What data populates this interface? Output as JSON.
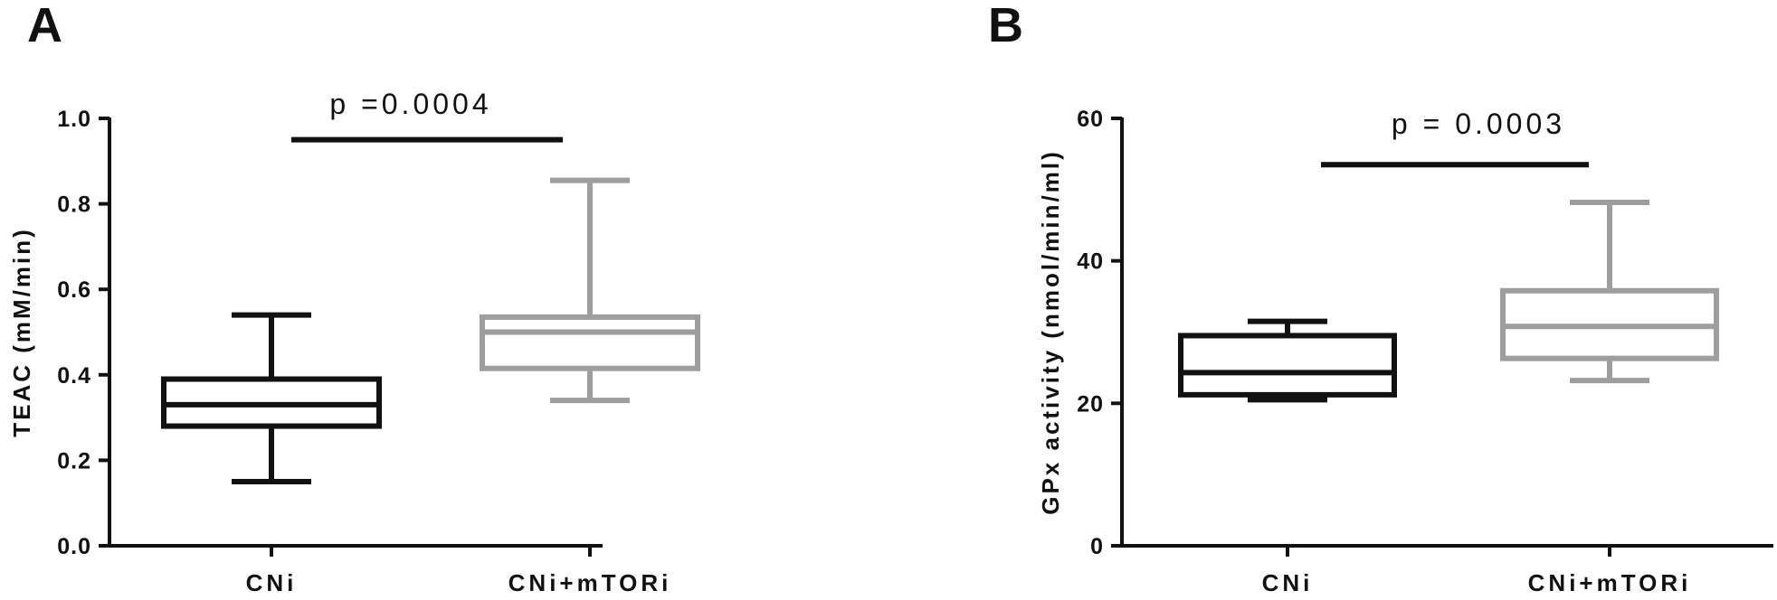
{
  "chart_data": [
    {
      "type": "box",
      "panel_label": "A",
      "ylabel": "TEAC (mM/min)",
      "ylim": [
        0,
        1.0
      ],
      "yticks": [
        0.0,
        0.2,
        0.4,
        0.6,
        0.8,
        1.0
      ],
      "ytick_labels": [
        "0.0",
        "0.2",
        "0.4",
        "0.6",
        "0.8",
        "1.0"
      ],
      "categories": [
        "CNi",
        "CNi+mTORi"
      ],
      "series": [
        {
          "category": "CNi",
          "color": "#111111",
          "min": 0.15,
          "q1": 0.28,
          "median": 0.33,
          "q3": 0.39,
          "max": 0.54
        },
        {
          "category": "CNi+mTORi",
          "color": "#9e9e9e",
          "min": 0.34,
          "q1": 0.415,
          "median": 0.5,
          "q3": 0.535,
          "max": 0.855
        }
      ],
      "annotation": {
        "text": "p =0.0004",
        "y": 0.95
      }
    },
    {
      "type": "box",
      "panel_label": "B",
      "ylabel": "GPx activity (nmol/min/ml)",
      "ylim": [
        0,
        60
      ],
      "yticks": [
        0,
        20,
        40,
        60
      ],
      "ytick_labels": [
        "0",
        "20",
        "40",
        "60"
      ],
      "categories": [
        "CNi",
        "CNi+mTORi"
      ],
      "series": [
        {
          "category": "CNi",
          "color": "#111111",
          "min": 20.5,
          "q1": 21.2,
          "median": 24.3,
          "q3": 29.5,
          "max": 31.5
        },
        {
          "category": "CNi+mTORi",
          "color": "#9e9e9e",
          "min": 23.2,
          "q1": 26.3,
          "median": 30.8,
          "q3": 35.8,
          "max": 48.2
        }
      ],
      "annotation": {
        "text": "p = 0.0003",
        "y": 53.5
      }
    }
  ]
}
